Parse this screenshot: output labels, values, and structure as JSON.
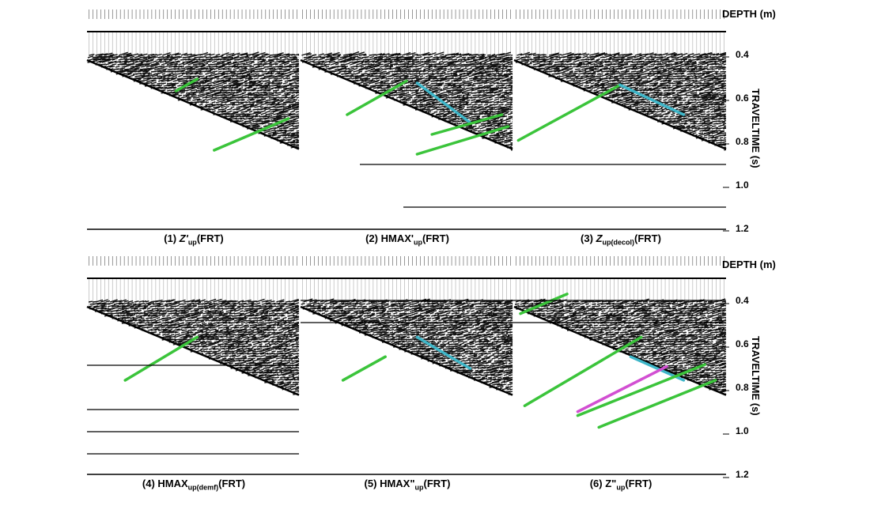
{
  "depth_axis_title": "DEPTH (m)",
  "traveltime_axis_title": "TRAVELTIME (s)",
  "traveltime_ticks": [
    "0.4",
    "0.6",
    "0.8",
    "1.0",
    "1.2"
  ],
  "panels": [
    {
      "number": "(1)",
      "symbol": "Z'",
      "sub": "up",
      "suffix": "(FRT)"
    },
    {
      "number": "(2)",
      "symbol": "HMAX'",
      "sub": "up",
      "suffix": "(FRT)"
    },
    {
      "number": "(3)",
      "symbol": "Z",
      "sub": "up(decol)",
      "suffix": "(FRT)"
    },
    {
      "number": "(4)",
      "symbol": "HMAX",
      "sub": "up(demf)",
      "suffix": "(FRT)"
    },
    {
      "number": "(5)",
      "symbol": "HMAX\"",
      "sub": "up",
      "suffix": "(FRT)"
    },
    {
      "number": "(6)",
      "symbol": "Z\"",
      "sub": "up",
      "suffix": "(FRT)"
    }
  ],
  "colors": {
    "wiggle": "#111111",
    "background": "#ffffff",
    "pick_green": "#3bc43b",
    "pick_cyan": "#3fb6c8",
    "pick_magenta": "#d24fd2"
  }
}
